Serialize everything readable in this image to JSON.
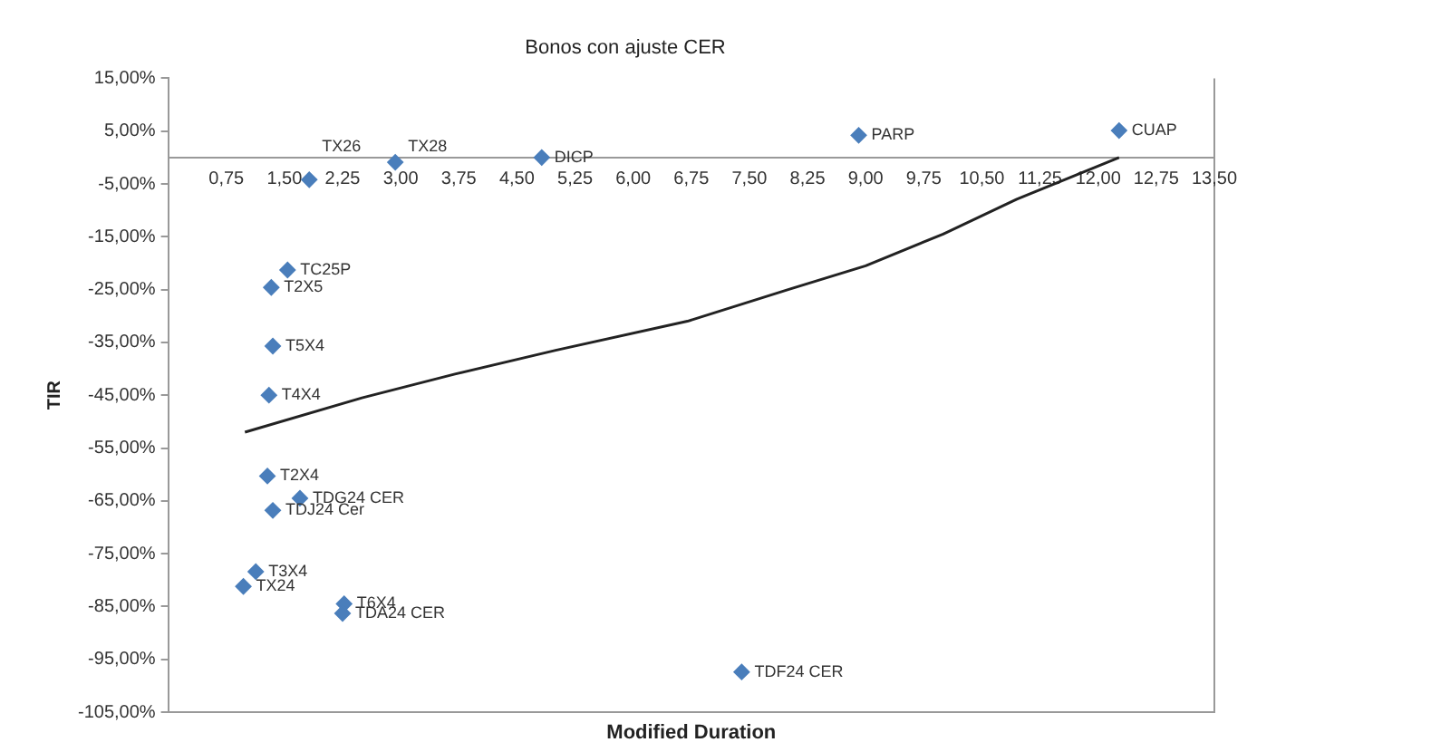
{
  "chart_data": {
    "type": "scatter",
    "title": "Bonos con ajuste CER",
    "xlabel": "Modified Duration",
    "ylabel": "TIR",
    "xlim": [
      0,
      13.5
    ],
    "ylim": [
      -105,
      15
    ],
    "xticks": [
      {
        "value": 0.75,
        "label": "0,75"
      },
      {
        "value": 1.5,
        "label": "1,50"
      },
      {
        "value": 2.25,
        "label": "2,25"
      },
      {
        "value": 3,
        "label": "3,00"
      },
      {
        "value": 3.75,
        "label": "3,75"
      },
      {
        "value": 4.5,
        "label": "4,50"
      },
      {
        "value": 5.25,
        "label": "5,25"
      },
      {
        "value": 6,
        "label": "6,00"
      },
      {
        "value": 6.75,
        "label": "6,75"
      },
      {
        "value": 7.5,
        "label": "7,50"
      },
      {
        "value": 8.25,
        "label": "8,25"
      },
      {
        "value": 9,
        "label": "9,00"
      },
      {
        "value": 9.75,
        "label": "9,75"
      },
      {
        "value": 10.5,
        "label": "10,50"
      },
      {
        "value": 11.25,
        "label": "11,25"
      },
      {
        "value": 12,
        "label": "12,00"
      },
      {
        "value": 12.75,
        "label": "12,75"
      },
      {
        "value": 13.5,
        "label": "13,50"
      }
    ],
    "yticks": [
      {
        "value": 15,
        "label": "15,00%"
      },
      {
        "value": 5,
        "label": "5,00%"
      },
      {
        "value": -5,
        "label": "-5,00%"
      },
      {
        "value": -15,
        "label": "-15,00%"
      },
      {
        "value": -25,
        "label": "-25,00%"
      },
      {
        "value": -35,
        "label": "-35,00%"
      },
      {
        "value": -45,
        "label": "-45,00%"
      },
      {
        "value": -55,
        "label": "-55,00%"
      },
      {
        "value": -65,
        "label": "-65,00%"
      },
      {
        "value": -75,
        "label": "-75,00%"
      },
      {
        "value": -85,
        "label": "-85,00%"
      },
      {
        "value": -95,
        "label": "-95,00%"
      },
      {
        "value": -105,
        "label": "-105,00%"
      }
    ],
    "grid": false,
    "legend": false,
    "marker": "diamond",
    "series": [
      {
        "color": "#4a7ebb",
        "x": [
          1.82,
          2.93,
          4.82,
          8.91,
          12.27,
          1.54,
          1.33,
          1.35,
          1.3,
          1.28,
          1.7,
          1.35,
          1.13,
          0.97,
          2.27,
          2.25,
          7.4
        ],
        "values": [
          -4.2,
          -0.9,
          0,
          4.2,
          5.1,
          -21.3,
          -24.6,
          -35.7,
          -45,
          -60.3,
          -64.5,
          -66.8,
          -78.4,
          -81.2,
          -84.5,
          -86.3,
          -97.4
        ]
      },
      {
        "type": "line",
        "color": "#222222",
        "marker": "none",
        "x": [
          0.99,
          2.5,
          3.7,
          5.0,
          6.7,
          8.0,
          9.0,
          10.0,
          10.95,
          12.27
        ],
        "values": [
          -52,
          -45.5,
          -41,
          -36.5,
          -31,
          -25,
          -20.5,
          -14.5,
          -7.9,
          0
        ]
      }
    ],
    "annotations": [
      {
        "text": "TX26",
        "x": 1.82,
        "y": -4.2
      },
      {
        "text": "TX28",
        "x": 2.93,
        "y": -0.9
      },
      {
        "text": "DICP",
        "x": 4.82,
        "y": 0
      },
      {
        "text": "PARP",
        "x": 8.91,
        "y": 4.2
      },
      {
        "text": "CUAP",
        "x": 12.27,
        "y": 5.1
      },
      {
        "text": "TC25P",
        "x": 1.54,
        "y": -21.3
      },
      {
        "text": "T2X5",
        "x": 1.33,
        "y": -24.6
      },
      {
        "text": "T5X4",
        "x": 1.35,
        "y": -35.7
      },
      {
        "text": "T4X4",
        "x": 1.3,
        "y": -45
      },
      {
        "text": "T2X4",
        "x": 1.28,
        "y": -60.3
      },
      {
        "text": "TDG24 CER",
        "x": 1.7,
        "y": -64.5
      },
      {
        "text": "TDJ24 Cer",
        "x": 1.35,
        "y": -66.8
      },
      {
        "text": "T3X4",
        "x": 1.13,
        "y": -78.4
      },
      {
        "text": "TX24",
        "x": 0.97,
        "y": -81.2
      },
      {
        "text": "T6X4",
        "x": 2.27,
        "y": -84.5
      },
      {
        "text": "TDA24 CER",
        "x": 2.25,
        "y": -86.3
      },
      {
        "text": "TDF24 CER",
        "x": 7.4,
        "y": -97.4
      }
    ]
  }
}
